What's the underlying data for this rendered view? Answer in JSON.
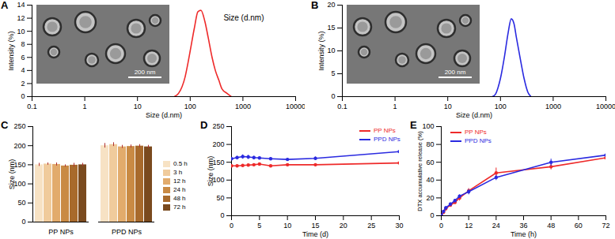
{
  "chart_data": [
    {
      "panel": "A",
      "type": "line",
      "xlabel": "Size (d.nm)",
      "ylabel": "Intensity (%)",
      "annotation": "Size (d.nm)",
      "scale_bar": "200 nm",
      "log": "x",
      "xlim": [
        0.1,
        10000
      ],
      "xticks": [
        0.1,
        1,
        10,
        100,
        1000,
        10000
      ],
      "ylim": [
        0,
        14
      ],
      "yticks": [
        0,
        2,
        4,
        6,
        8,
        10,
        12,
        14
      ],
      "x": [
        50,
        60,
        70,
        80,
        90,
        100,
        120,
        140,
        160,
        190,
        220,
        260,
        300,
        350,
        400,
        500,
        600
      ],
      "series": [
        {
          "color": "#ee2a2a",
          "values": [
            0,
            0.5,
            1.5,
            3,
            5,
            7,
            10.5,
            13,
            13.2,
            11.5,
            9,
            6,
            4,
            2.5,
            1.2,
            0.5,
            0
          ]
        }
      ]
    },
    {
      "panel": "B",
      "type": "line",
      "xlabel": "Size (d.nm)",
      "ylabel": "Intensity (%)",
      "scale_bar": "200 nm",
      "log": "x",
      "xlim": [
        0.1,
        10000
      ],
      "xticks": [
        0.1,
        1,
        10,
        100,
        1000,
        10000
      ],
      "ylim": [
        0,
        20
      ],
      "yticks": [
        0,
        5,
        10,
        15,
        20
      ],
      "x": [
        70,
        80,
        90,
        100,
        120,
        140,
        160,
        180,
        200,
        240,
        280,
        330,
        380
      ],
      "series": [
        {
          "color": "#2a2ae0",
          "values": [
            0,
            0.5,
            2,
            4,
            9,
            14,
            17,
            16,
            13,
            8,
            4,
            1,
            0
          ]
        }
      ]
    },
    {
      "panel": "C",
      "type": "bar",
      "ylabel": "Size (nm)",
      "legend": "right",
      "categories": [
        "PP NPs",
        "PPD NPs"
      ],
      "ylim": [
        0,
        250
      ],
      "yticks": [
        0,
        50,
        100,
        150,
        200,
        250
      ],
      "series": [
        {
          "name": "0.5 h",
          "color": "#f7e2c4",
          "values": [
            150,
            200
          ],
          "errors": [
            4,
            6
          ]
        },
        {
          "name": "3 h",
          "color": "#f0cb9c",
          "values": [
            152,
            203
          ],
          "errors": [
            3,
            5
          ]
        },
        {
          "name": "12 h",
          "color": "#e2ab6c",
          "values": [
            151,
            197
          ],
          "errors": [
            4,
            4
          ]
        },
        {
          "name": "24 h",
          "color": "#c98a44",
          "values": [
            147,
            198
          ],
          "errors": [
            3,
            4
          ]
        },
        {
          "name": "48 h",
          "color": "#a86a2c",
          "values": [
            149,
            199
          ],
          "errors": [
            5,
            4
          ]
        },
        {
          "name": "72 h",
          "color": "#7a4a1e",
          "values": [
            150,
            197
          ],
          "errors": [
            4,
            4
          ]
        }
      ]
    },
    {
      "panel": "D",
      "type": "line",
      "xlabel": "Time (d)",
      "ylabel": "Size (nm)",
      "legend": "top-right",
      "xlim": [
        0,
        30
      ],
      "xticks": [
        0,
        5,
        10,
        15,
        20,
        25,
        30
      ],
      "ylim": [
        0,
        250
      ],
      "yticks": [
        0,
        50,
        100,
        150,
        200,
        250
      ],
      "x": [
        0,
        1,
        2,
        3,
        4,
        5,
        7,
        10,
        15,
        30
      ],
      "series": [
        {
          "name": "PP NPs",
          "color": "#ee2a2a",
          "marker": "circle",
          "values": [
            140,
            140,
            141,
            142,
            143,
            145,
            140,
            143,
            143,
            148
          ],
          "errors": [
            3,
            3,
            3,
            3,
            3,
            3,
            3,
            3,
            4,
            3
          ]
        },
        {
          "name": "PPD NPs",
          "color": "#2a2ae0",
          "marker": "circle",
          "values": [
            160,
            163,
            166,
            165,
            163,
            162,
            160,
            158,
            161,
            180
          ],
          "errors": [
            4,
            5,
            6,
            6,
            5,
            4,
            4,
            4,
            5,
            9
          ]
        }
      ]
    },
    {
      "panel": "E",
      "type": "line",
      "xlabel": "Time (h)",
      "ylabel": "DTX accumulative release (%)",
      "legend": "top-left",
      "xlim": [
        0,
        72
      ],
      "xticks": [
        0,
        12,
        24,
        36,
        48,
        60,
        72
      ],
      "ylim": [
        0,
        100
      ],
      "yticks": [
        0,
        20,
        40,
        60,
        80,
        100
      ],
      "x": [
        0,
        1,
        2,
        4,
        6,
        8,
        12,
        24,
        48,
        72
      ],
      "series": [
        {
          "name": "PP NPs",
          "color": "#ee2a2a",
          "marker": "circle",
          "values": [
            0,
            4,
            8,
            12,
            15,
            20,
            28,
            48,
            55,
            65
          ],
          "errors": [
            0,
            1,
            2,
            2,
            2,
            3,
            3,
            6,
            3,
            2
          ]
        },
        {
          "name": "PPD NPs",
          "color": "#2a2ae0",
          "marker": "circle",
          "values": [
            0,
            5,
            9,
            13,
            17,
            22,
            27,
            43,
            60,
            68
          ],
          "errors": [
            0,
            1,
            2,
            2,
            2,
            2,
            3,
            3,
            4,
            2
          ]
        }
      ]
    }
  ]
}
